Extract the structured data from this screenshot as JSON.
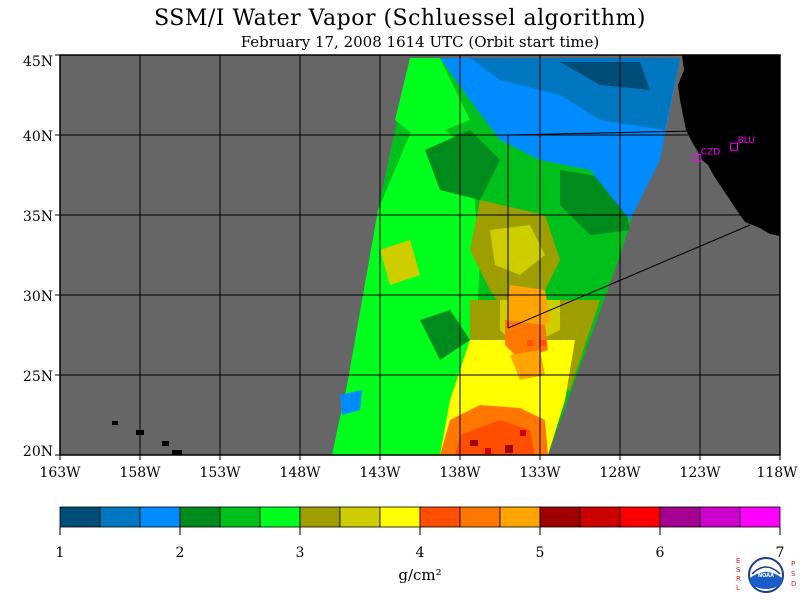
{
  "title": "SSM/I Water Vapor (Schluessel algorithm)",
  "subtitle": "February 17, 2008  1614 UTC  (Orbit start time)",
  "lat_labels": [
    "45N",
    "40N",
    "35N",
    "30N",
    "25N",
    "20N"
  ],
  "lon_labels": [
    "163W",
    "158W",
    "153W",
    "148W",
    "143W",
    "138W",
    "133W",
    "128W",
    "123W",
    "118W"
  ],
  "stations": [
    {
      "label": "CZD",
      "lon": -123.2,
      "lat": 38.6
    },
    {
      "label": "BLU",
      "lon": -120.9,
      "lat": 39.3
    }
  ],
  "colorbar": {
    "unit": "g/cm²",
    "tick_labels": [
      "1",
      "2",
      "3",
      "4",
      "5",
      "6",
      "7"
    ],
    "colors": [
      "#004e78",
      "#0077c0",
      "#008cff",
      "#008c1c",
      "#00c01c",
      "#00ff1c",
      "#9e9e00",
      "#cdcd00",
      "#ffff00",
      "#ff4e00",
      "#ff7700",
      "#ffa400",
      "#9e0000",
      "#cd0000",
      "#ff0000",
      "#a40092",
      "#cd00cd",
      "#ff00ff"
    ]
  },
  "colors": {
    "no_data": "#666666",
    "land": "#000000",
    "station": "#ff00ff"
  },
  "logo": {
    "left_letters": "ESRL",
    "right_letters": "PSD",
    "center": "NOAA"
  }
}
